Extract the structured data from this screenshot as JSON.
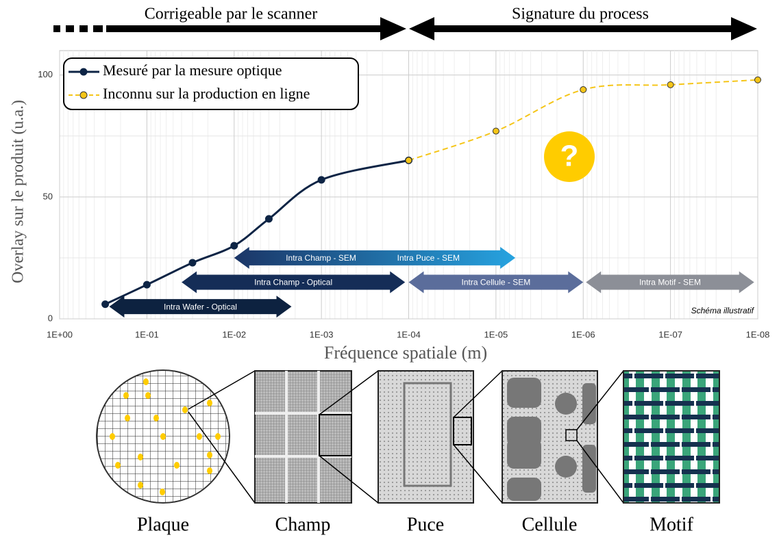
{
  "chart_data": {
    "type": "line",
    "top_spans": [
      {
        "label": "Corrigeable par le scanner",
        "from": 1,
        "to": 0.0001
      },
      {
        "label": "Signature du process",
        "from": 0.0001,
        "to": 1e-08
      }
    ],
    "ylabel": "Overlay sur le produit (u.a.)",
    "xlabel": "Fréquence spatiale (m)",
    "xscale": "log",
    "xlim": [
      1,
      1e-08
    ],
    "xticks": [
      {
        "value": 1,
        "label": "1E+00"
      },
      {
        "value": 0.1,
        "label": "1E-01"
      },
      {
        "value": 0.01,
        "label": "1E-02"
      },
      {
        "value": 0.001,
        "label": "1E-03"
      },
      {
        "value": 0.0001,
        "label": "1E-04"
      },
      {
        "value": 1e-05,
        "label": "1E-05"
      },
      {
        "value": 1e-06,
        "label": "1E-06"
      },
      {
        "value": 1e-07,
        "label": "1E-07"
      },
      {
        "value": 1e-08,
        "label": "1E-08"
      }
    ],
    "ylim": [
      0,
      110
    ],
    "yticks": [
      0,
      50,
      100
    ],
    "grid": true,
    "minor_grid": true,
    "legend": "top-left",
    "series": [
      {
        "name": "Mesuré par la mesure optique",
        "color": "#0d2445",
        "dashed": false,
        "x": [
          0.3,
          0.1,
          0.03,
          0.01,
          0.004,
          0.001,
          0.0001
        ],
        "values": [
          6,
          14,
          23,
          30,
          41,
          57,
          65
        ]
      },
      {
        "name": "Inconnu sur la production en ligne",
        "color": "#f5c518",
        "dashed": true,
        "x": [
          0.0001,
          1e-05,
          1e-06,
          1e-07,
          1e-08
        ],
        "values": [
          65,
          77,
          94,
          96,
          98
        ]
      }
    ],
    "ranges": [
      {
        "labels": [
          "Intra Wafer - Optical"
        ],
        "from": 0.27,
        "to": 0.0022,
        "y": 5,
        "colors": [
          "#0d2240",
          "#0d2240"
        ]
      },
      {
        "labels": [
          "Intra Champ - Optical"
        ],
        "from": 0.04,
        "to": 0.00011,
        "y": 15,
        "colors": [
          "#152d57",
          "#152d57"
        ]
      },
      {
        "labels": [
          "Intra Champ - SEM",
          "Intra Puce - SEM"
        ],
        "from": 0.01,
        "to": 6e-06,
        "y": 25,
        "colors": [
          "#1b3566",
          "#26a3e0"
        ]
      },
      {
        "labels": [
          "Intra Cellule - SEM"
        ],
        "from": 0.0001,
        "to": 1e-06,
        "y": 15,
        "colors": [
          "#5b6d9b",
          "#5b6d9b"
        ]
      },
      {
        "labels": [
          "Intra Motif - SEM"
        ],
        "from": 9.3e-07,
        "to": 1.1e-08,
        "y": 15,
        "colors": [
          "#8c8f97",
          "#8c8f97"
        ]
      }
    ],
    "question_mark": "?",
    "note": "Schéma illustratif",
    "scales": [
      "Plaque",
      "Champ",
      "Puce",
      "Cellule",
      "Motif"
    ]
  }
}
